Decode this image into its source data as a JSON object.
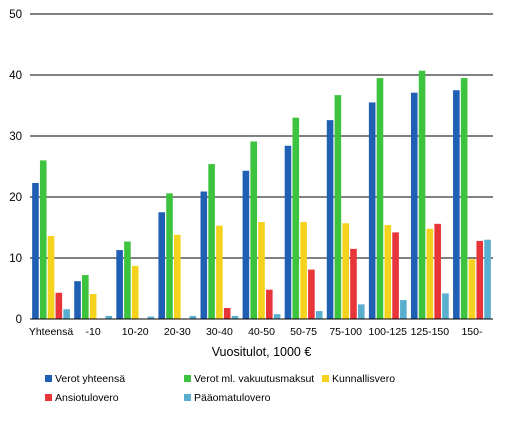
{
  "chart_data": {
    "type": "bar",
    "title": "",
    "xlabel": "Vuositulot, 1000 €",
    "ylabel": "",
    "ylim": [
      0,
      50
    ],
    "yticks": [
      0,
      10,
      20,
      30,
      40,
      50
    ],
    "grid": true,
    "legend_position": "bottom",
    "categories": [
      "Yhteensä",
      "-10",
      "10-20",
      "20-30",
      "30-40",
      "40-50",
      "50-75",
      "75-100",
      "100-125",
      "125-150",
      "150-"
    ],
    "series": [
      {
        "name": "Verot yhteensä",
        "color": "#1f5fb4",
        "values": [
          22.3,
          6.2,
          11.3,
          17.5,
          20.9,
          24.3,
          28.4,
          32.6,
          35.5,
          37.1,
          37.5
        ]
      },
      {
        "name": "Verot ml. vakuutusmaksut",
        "color": "#3ec33e",
        "values": [
          26.0,
          7.2,
          12.7,
          20.6,
          25.4,
          29.1,
          33.0,
          36.7,
          39.5,
          40.7,
          39.5
        ]
      },
      {
        "name": "Kunnallisvero",
        "color": "#f5d21e",
        "values": [
          13.6,
          4.1,
          8.7,
          13.8,
          15.3,
          15.9,
          15.9,
          15.7,
          15.4,
          14.8,
          9.8
        ]
      },
      {
        "name": "Ansiotulovero",
        "color": "#e8353a",
        "values": [
          4.3,
          0.0,
          0.0,
          0.0,
          1.8,
          4.8,
          8.1,
          11.5,
          14.2,
          15.6,
          12.8
        ]
      },
      {
        "name": "Pääomatulovero",
        "color": "#5aafce",
        "values": [
          1.6,
          0.5,
          0.4,
          0.5,
          0.5,
          0.8,
          1.3,
          2.4,
          3.1,
          4.2,
          13.0
        ]
      }
    ]
  }
}
